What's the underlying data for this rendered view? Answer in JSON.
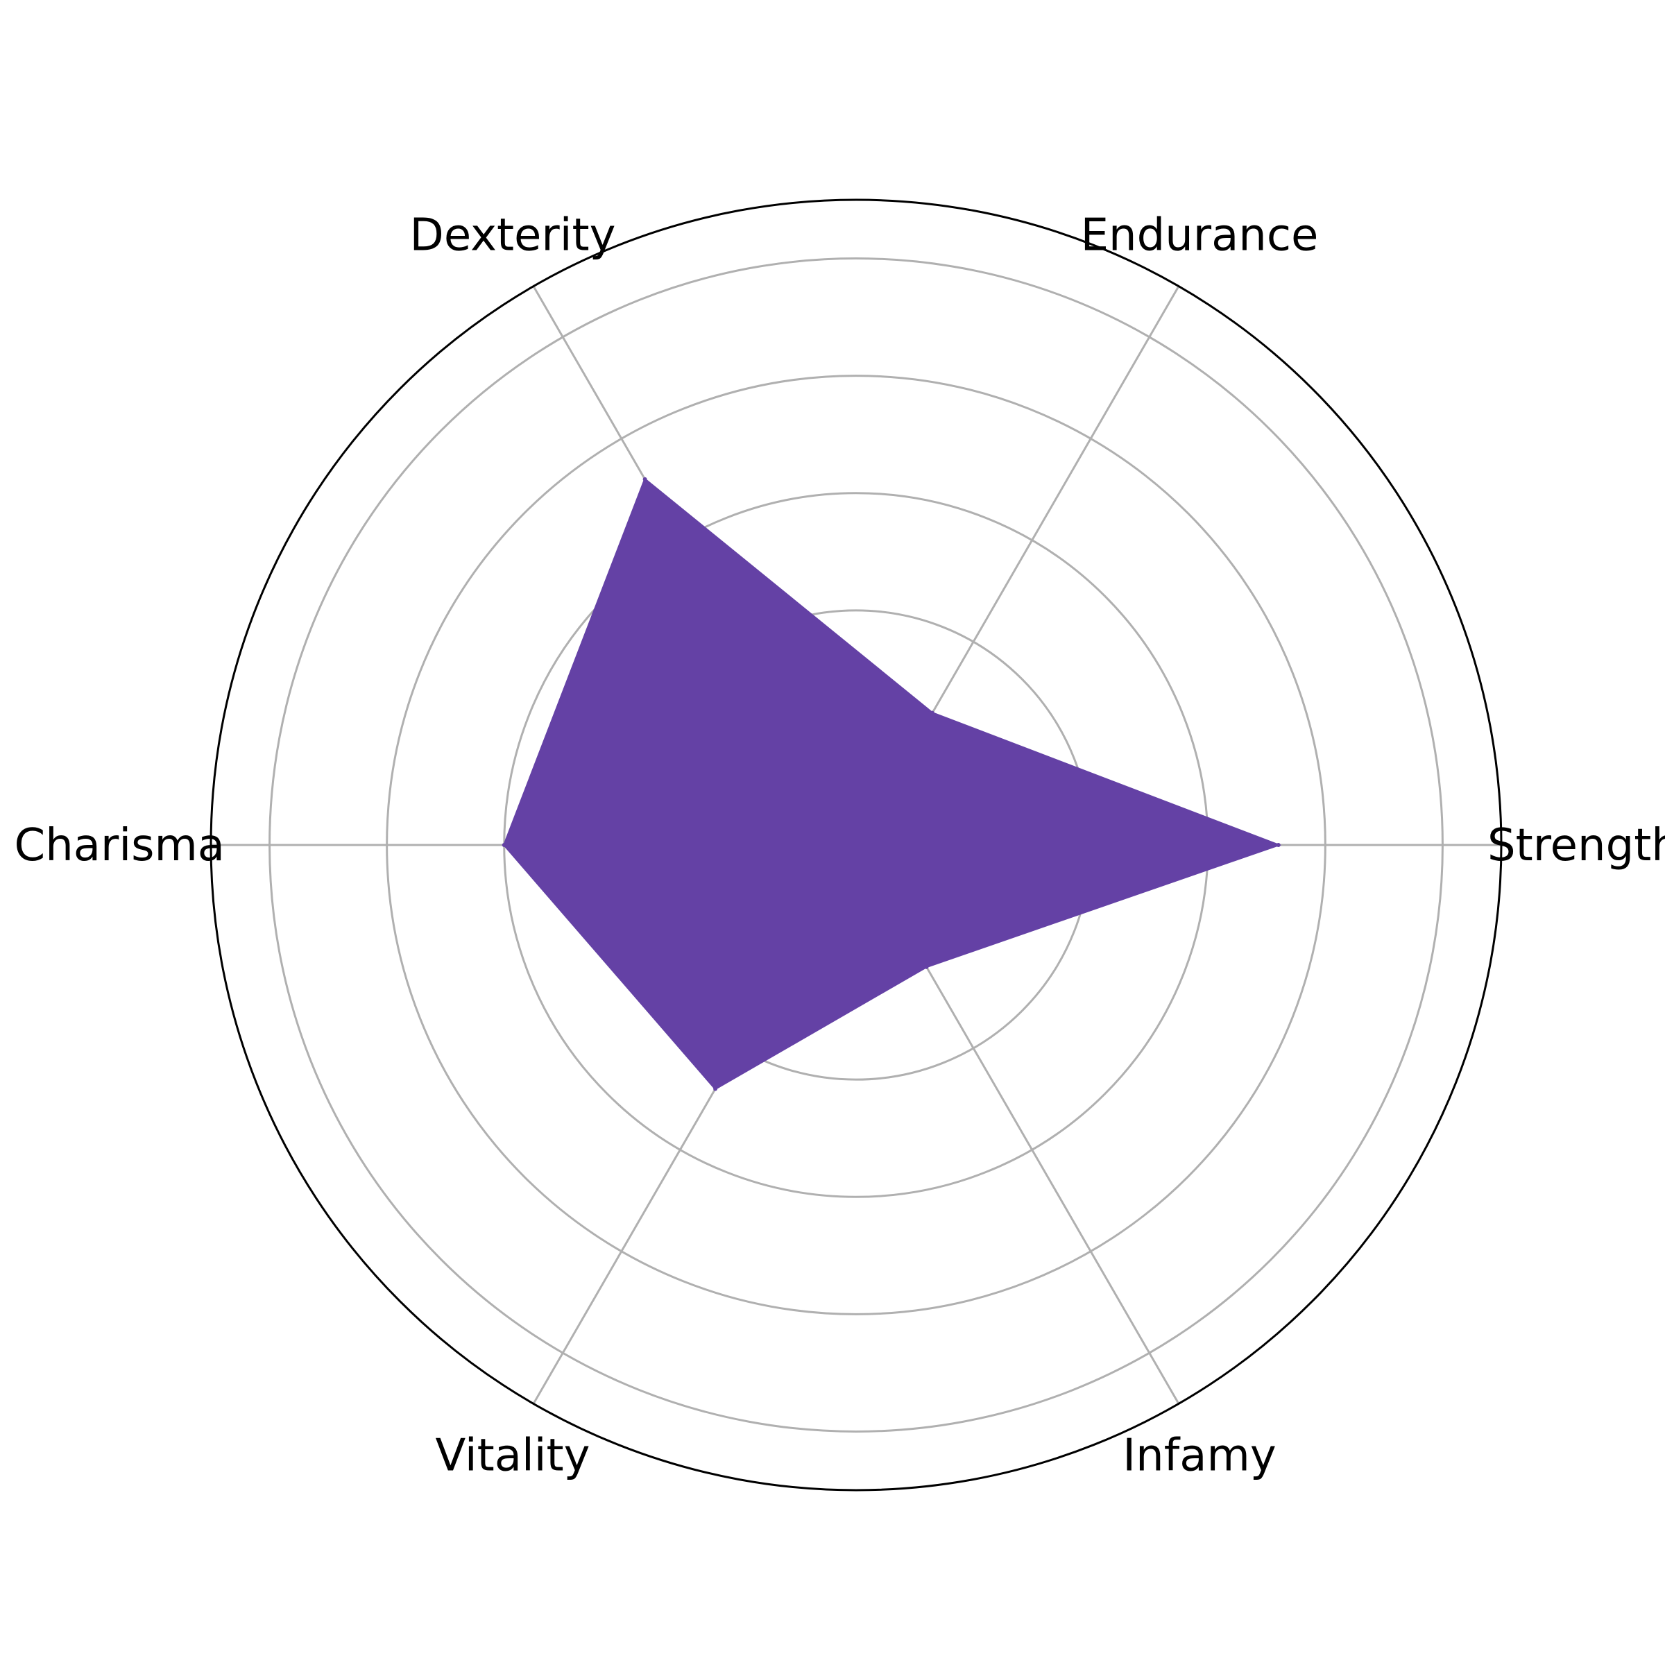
{
  "chart_data": {
    "type": "radar",
    "title": "",
    "categories": [
      "Strength",
      "Endurance",
      "Dexterity",
      "Charisma",
      "Vitality",
      "Infamy"
    ],
    "series": [
      {
        "values": [
          3.6,
          1.3,
          3.6,
          3.0,
          2.4,
          1.2
        ],
        "color": "#6441a5"
      }
    ],
    "rlim": [
      0,
      5.5
    ],
    "rticks": [
      1,
      2,
      3,
      4,
      5
    ],
    "grid": true,
    "gridColor": "#b0b0b0",
    "outlineColor": "#000000"
  }
}
